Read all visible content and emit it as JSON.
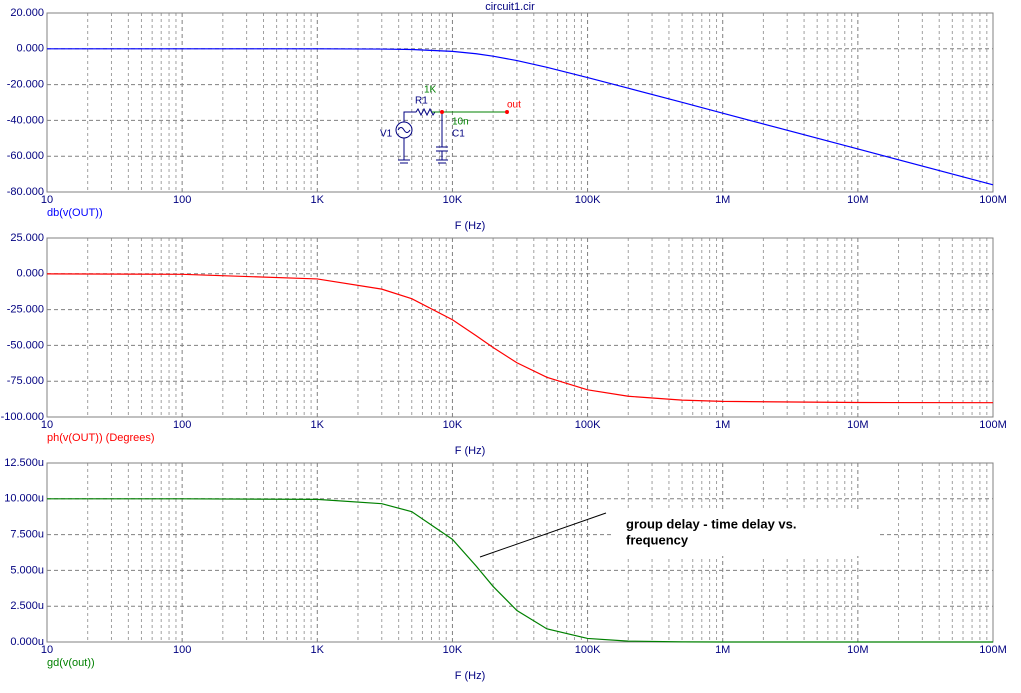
{
  "chart_data": [
    {
      "type": "line",
      "title": "circuit1.cir",
      "log_x": true,
      "grid": true,
      "x_label": "F (Hz)",
      "x": [
        10,
        100,
        1000,
        3000,
        5000,
        10000,
        15000,
        20000,
        30000,
        50000,
        100000,
        200000,
        500000,
        1000000,
        10000000,
        100000000
      ],
      "series": [
        {
          "name": "db(v(OUT))",
          "color": "#0000ff",
          "values": [
            0,
            0,
            -0.017,
            -0.15,
            -0.41,
            -1.45,
            -2.76,
            -4.11,
            -6.58,
            -10.36,
            -16.07,
            -22.0,
            -29.9,
            -35.96,
            -55.96,
            -75.96
          ]
        }
      ],
      "xlim": [
        10,
        100000000
      ],
      "xticks": [
        {
          "value": 10,
          "label": "10"
        },
        {
          "value": 100,
          "label": "100"
        },
        {
          "value": 1000,
          "label": "1K"
        },
        {
          "value": 10000,
          "label": "10K"
        },
        {
          "value": 100000,
          "label": "100K"
        },
        {
          "value": 1000000,
          "label": "1M"
        },
        {
          "value": 10000000,
          "label": "10M"
        },
        {
          "value": 100000000,
          "label": "100M"
        }
      ],
      "ylim": [
        -80,
        20
      ],
      "yticks": [
        {
          "value": 20,
          "label": "20.000"
        },
        {
          "value": 0,
          "label": "0.000"
        },
        {
          "value": -20,
          "label": "-20.000"
        },
        {
          "value": -40,
          "label": "-40.000"
        },
        {
          "value": -60,
          "label": "-60.000"
        },
        {
          "value": -80,
          "label": "-80.000"
        }
      ]
    },
    {
      "type": "line",
      "log_x": true,
      "grid": true,
      "x_label": "F (Hz)",
      "x": [
        10,
        100,
        1000,
        3000,
        5000,
        10000,
        15000,
        20000,
        30000,
        50000,
        100000,
        200000,
        500000,
        1000000,
        10000000,
        100000000
      ],
      "series": [
        {
          "name": "ph(v(OUT)) (Degrees)",
          "color": "#ff0000",
          "values": [
            -0.04,
            -0.36,
            -3.6,
            -10.7,
            -17.4,
            -32.1,
            -43.3,
            -51.5,
            -62.1,
            -72.3,
            -81.0,
            -85.5,
            -88.2,
            -89.1,
            -89.9,
            -90.0
          ]
        }
      ],
      "xlim": [
        10,
        100000000
      ],
      "xticks": [
        {
          "value": 10,
          "label": "10"
        },
        {
          "value": 100,
          "label": "100"
        },
        {
          "value": 1000,
          "label": "1K"
        },
        {
          "value": 10000,
          "label": "10K"
        },
        {
          "value": 100000,
          "label": "100K"
        },
        {
          "value": 1000000,
          "label": "1M"
        },
        {
          "value": 10000000,
          "label": "10M"
        },
        {
          "value": 100000000,
          "label": "100M"
        }
      ],
      "ylim": [
        -100,
        25
      ],
      "yticks": [
        {
          "value": 25,
          "label": "25.000"
        },
        {
          "value": 0,
          "label": "0.000"
        },
        {
          "value": -25,
          "label": "-25.000"
        },
        {
          "value": -50,
          "label": "-50.000"
        },
        {
          "value": -75,
          "label": "-75.000"
        },
        {
          "value": -100,
          "label": "-100.000"
        }
      ]
    },
    {
      "type": "line",
      "log_x": true,
      "grid": true,
      "x_label": "F (Hz)",
      "x": [
        10,
        100,
        1000,
        3000,
        5000,
        10000,
        15000,
        20000,
        30000,
        50000,
        100000,
        200000,
        500000,
        1000000,
        10000000,
        100000000
      ],
      "series": [
        {
          "name": "gd(v(out))",
          "color": "#008000",
          "values": [
            10.0,
            10.0,
            9.96,
            9.66,
            9.1,
            7.17,
            5.3,
            3.88,
            2.2,
            0.92,
            0.247,
            0.063,
            0.01,
            0.0025,
            0,
            0
          ]
        }
      ],
      "xlim": [
        10,
        100000000
      ],
      "xticks": [
        {
          "value": 10,
          "label": "10"
        },
        {
          "value": 100,
          "label": "100"
        },
        {
          "value": 1000,
          "label": "1K"
        },
        {
          "value": 10000,
          "label": "10K"
        },
        {
          "value": 100000,
          "label": "100K"
        },
        {
          "value": 1000000,
          "label": "1M"
        },
        {
          "value": 10000000,
          "label": "10M"
        },
        {
          "value": 100000000,
          "label": "100M"
        }
      ],
      "ylim": [
        0,
        12.5
      ],
      "yticks": [
        {
          "value": 12.5,
          "label": "12.500u"
        },
        {
          "value": 10,
          "label": "10.000u"
        },
        {
          "value": 7.5,
          "label": "7.500u"
        },
        {
          "value": 5,
          "label": "5.000u"
        },
        {
          "value": 2.5,
          "label": "2.500u"
        },
        {
          "value": 0,
          "label": "0.000u"
        }
      ],
      "annotation": [
        "group delay - time delay vs.",
        "frequency"
      ]
    }
  ],
  "schematic": {
    "resistor_value": "1K",
    "resistor_name": "R1",
    "capacitor_value": "10n",
    "capacitor_name": "C1",
    "source_name": "V1",
    "node": "out"
  }
}
